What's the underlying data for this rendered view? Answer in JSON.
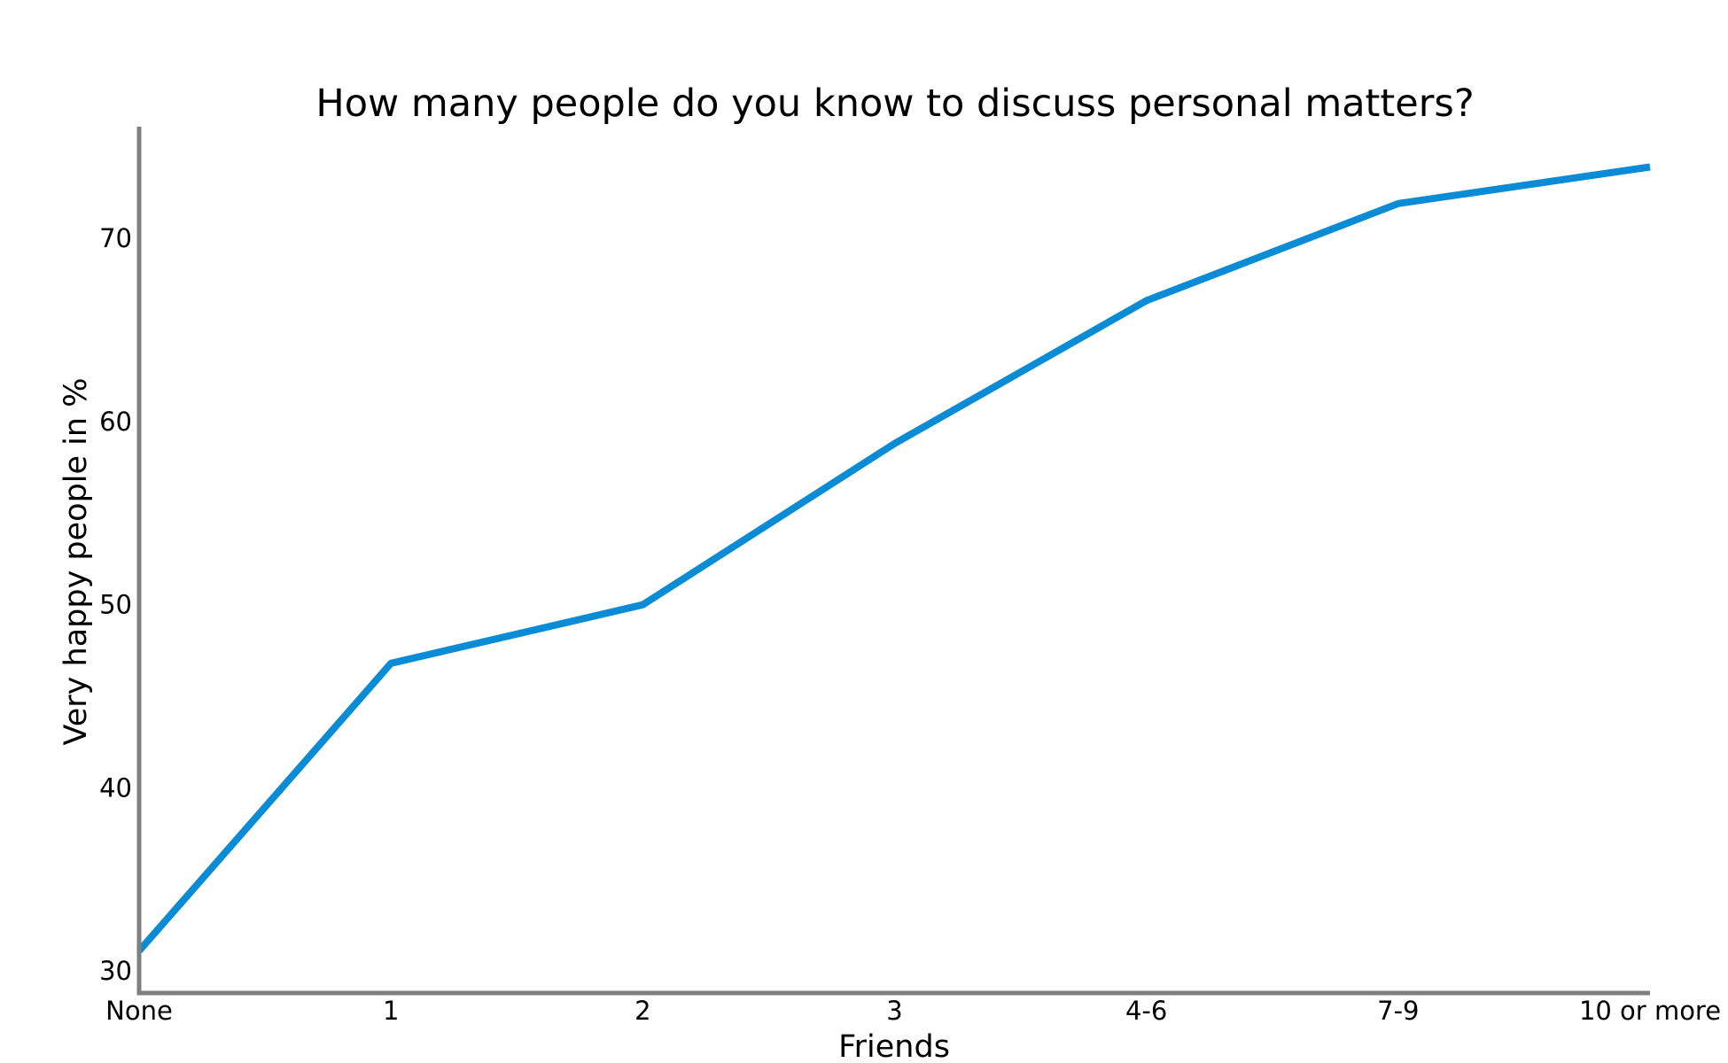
{
  "chart_data": {
    "type": "line",
    "title": "How many people do you know to discuss personal matters?",
    "xlabel": "Friends",
    "ylabel": "Very happy people in %",
    "categories": [
      "None",
      "1",
      "2",
      "3",
      "4-6",
      "7-9",
      "10 or more"
    ],
    "series": [
      {
        "values": [
          31.1,
          46.8,
          50.0,
          58.8,
          66.6,
          71.9,
          73.9
        ]
      }
    ],
    "yticks": [
      30,
      40,
      50,
      60,
      70
    ],
    "ytick_labels": [
      "30",
      "40",
      "50",
      "60",
      "70"
    ],
    "ylim": [
      28.8,
      76.1
    ],
    "grid": false,
    "legend": "none",
    "colors": {
      "line": "#0a8bd6",
      "axis": "#7f7f7f",
      "text": "#000000"
    }
  }
}
